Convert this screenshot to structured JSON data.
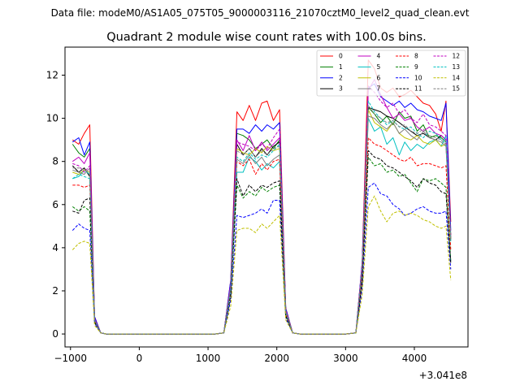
{
  "header": {
    "datafile": "Data file: modeM0/AS1A05_075T05_9000003116_21070cztM0_level2_quad_clean.evt"
  },
  "chart_data": {
    "type": "line",
    "title": "Quadrant 2 module wise count rates with 100.0s bins.",
    "xlabel": "",
    "ylabel": "",
    "offset_text": "+3.041e8",
    "x_ticks": [
      -1000,
      0,
      1000,
      2000,
      3000,
      4000
    ],
    "x_tick_labels": [
      "−1000",
      "0",
      "1000",
      "2000",
      "3000",
      "4000"
    ],
    "y_ticks": [
      0,
      2,
      4,
      6,
      8,
      10,
      12
    ],
    "y_tick_labels": [
      "0",
      "2",
      "4",
      "6",
      "8",
      "10",
      "12"
    ],
    "xlim": [
      -1080,
      4780
    ],
    "ylim": [
      -0.6,
      13.3
    ],
    "grid": false,
    "legend_position": "top-right",
    "x": [
      -970,
      -880,
      -800,
      -720,
      -650,
      -560,
      -480,
      -400,
      -300,
      -200,
      -100,
      0,
      100,
      200,
      300,
      400,
      500,
      600,
      700,
      800,
      900,
      1000,
      1100,
      1230,
      1330,
      1420,
      1510,
      1600,
      1690,
      1780,
      1860,
      1950,
      2040,
      2130,
      2230,
      2340,
      2450,
      2600,
      2800,
      3000,
      3150,
      3240,
      3330,
      3420,
      3510,
      3600,
      3690,
      3780,
      3860,
      3950,
      4040,
      4130,
      4220,
      4310,
      4390,
      4460,
      4530
    ],
    "series": [
      {
        "name": "0",
        "color": "#ff0000",
        "dashed": false,
        "values": [
          9.0,
          8.8,
          9.3,
          9.7,
          0.8,
          0.05,
          0,
          0,
          0,
          0,
          0,
          0,
          0,
          0,
          0,
          0,
          0,
          0,
          0,
          0,
          0,
          0,
          0,
          0.05,
          2.5,
          10.3,
          9.9,
          10.6,
          9.9,
          10.7,
          10.8,
          9.9,
          10.4,
          1.2,
          0.05,
          0,
          0,
          0,
          0,
          0,
          0.05,
          3.3,
          12.7,
          12.3,
          11.4,
          11.2,
          11.4,
          11.0,
          11.1,
          11.3,
          11.0,
          10.7,
          10.6,
          10.2,
          9.4,
          10.8,
          5.2
        ]
      },
      {
        "name": "1",
        "color": "#008000",
        "dashed": false,
        "values": [
          8.8,
          8.4,
          8.2,
          8.6,
          0.75,
          0.05,
          0,
          0,
          0,
          0,
          0,
          0,
          0,
          0,
          0,
          0,
          0,
          0,
          0,
          0,
          0,
          0,
          0,
          0.05,
          2.4,
          9.3,
          9.2,
          9.0,
          8.6,
          8.8,
          9.0,
          8.6,
          9.0,
          1.1,
          0.05,
          0,
          0,
          0,
          0,
          0,
          0.05,
          3.2,
          10.5,
          10.2,
          9.8,
          10.1,
          9.7,
          10.3,
          10.0,
          10.1,
          9.4,
          9.7,
          9.1,
          9.2,
          9.1,
          8.9,
          4.6
        ]
      },
      {
        "name": "2",
        "color": "#0000ff",
        "dashed": false,
        "values": [
          8.9,
          9.1,
          8.3,
          8.9,
          0.8,
          0.05,
          0,
          0,
          0,
          0,
          0,
          0,
          0,
          0,
          0,
          0,
          0,
          0,
          0,
          0,
          0,
          0,
          0,
          0.05,
          2.5,
          9.5,
          9.5,
          9.3,
          9.7,
          9.4,
          9.7,
          9.5,
          9.8,
          1.2,
          0.05,
          0,
          0,
          0,
          0,
          0,
          0.05,
          3.3,
          11.4,
          11.6,
          11.0,
          10.8,
          10.6,
          10.8,
          10.5,
          10.7,
          10.4,
          10.3,
          10.1,
          10.0,
          9.9,
          10.7,
          4.8
        ]
      },
      {
        "name": "3",
        "color": "#000000",
        "dashed": false,
        "values": [
          7.8,
          7.5,
          7.7,
          7.3,
          0.7,
          0.05,
          0,
          0,
          0,
          0,
          0,
          0,
          0,
          0,
          0,
          0,
          0,
          0,
          0,
          0,
          0,
          0,
          0,
          0.05,
          2.2,
          8.8,
          8.3,
          8.6,
          8.2,
          8.6,
          8.3,
          8.7,
          8.9,
          1.1,
          0.05,
          0,
          0,
          0,
          0,
          0,
          0.05,
          3.0,
          10.5,
          10.4,
          10.3,
          10.1,
          10.0,
          9.8,
          9.6,
          9.4,
          9.2,
          9.3,
          9.1,
          9.0,
          9.2,
          9.0,
          4.4
        ]
      },
      {
        "name": "4",
        "color": "#c000c0",
        "dashed": false,
        "values": [
          8.0,
          8.2,
          7.9,
          8.4,
          0.7,
          0.05,
          0,
          0,
          0,
          0,
          0,
          0,
          0,
          0,
          0,
          0,
          0,
          0,
          0,
          0,
          0,
          0,
          0,
          0.05,
          2.3,
          9.0,
          8.5,
          9.2,
          8.5,
          8.9,
          8.5,
          8.8,
          9.1,
          1.1,
          0.05,
          0,
          0,
          0,
          0,
          0,
          0.05,
          3.1,
          11.3,
          11.8,
          11.1,
          10.5,
          10.0,
          10.2,
          9.9,
          10.0,
          9.6,
          9.4,
          9.6,
          9.3,
          9.2,
          9.0,
          4.5
        ]
      },
      {
        "name": "5",
        "color": "#00c0c0",
        "dashed": false,
        "values": [
          7.2,
          7.3,
          7.6,
          7.4,
          0.65,
          0.05,
          0,
          0,
          0,
          0,
          0,
          0,
          0,
          0,
          0,
          0,
          0,
          0,
          0,
          0,
          0,
          0,
          0,
          0.05,
          2.1,
          7.5,
          7.5,
          8.2,
          8.0,
          7.6,
          7.9,
          7.7,
          8.0,
          1.0,
          0.05,
          0,
          0,
          0,
          0,
          0,
          0.05,
          2.9,
          10.0,
          9.4,
          9.6,
          8.8,
          9.1,
          8.3,
          8.9,
          8.5,
          8.8,
          8.6,
          8.9,
          9.0,
          8.7,
          9.2,
          4.3
        ]
      },
      {
        "name": "6",
        "color": "#c0c000",
        "dashed": false,
        "values": [
          7.5,
          7.4,
          7.6,
          7.5,
          0.65,
          0.05,
          0,
          0,
          0,
          0,
          0,
          0,
          0,
          0,
          0,
          0,
          0,
          0,
          0,
          0,
          0,
          0,
          0,
          0.05,
          2.2,
          8.6,
          8.4,
          8.3,
          8.6,
          8.4,
          8.7,
          8.5,
          8.6,
          1.05,
          0.05,
          0,
          0,
          0,
          0,
          0,
          0.05,
          3.0,
          10.4,
          9.8,
          9.6,
          9.4,
          9.8,
          9.3,
          9.1,
          9.0,
          9.2,
          8.9,
          8.8,
          9.0,
          8.7,
          8.8,
          4.4
        ]
      },
      {
        "name": "7",
        "color": "#808080",
        "dashed": false,
        "values": [
          7.6,
          7.5,
          7.4,
          7.7,
          0.65,
          0.05,
          0,
          0,
          0,
          0,
          0,
          0,
          0,
          0,
          0,
          0,
          0,
          0,
          0,
          0,
          0,
          0,
          0,
          0.05,
          2.2,
          8.1,
          7.9,
          8.3,
          7.9,
          8.2,
          7.8,
          8.1,
          8.3,
          1.0,
          0.05,
          0,
          0,
          0,
          0,
          0,
          0.05,
          2.9,
          10.1,
          10.0,
          9.7,
          9.5,
          9.8,
          9.3,
          9.5,
          9.2,
          9.0,
          9.4,
          9.1,
          9.0,
          8.9,
          8.7,
          4.4
        ]
      },
      {
        "name": "8",
        "color": "#ff0000",
        "dashed": true,
        "values": [
          6.9,
          6.9,
          6.8,
          6.9,
          0.6,
          0.05,
          0,
          0,
          0,
          0,
          0,
          0,
          0,
          0,
          0,
          0,
          0,
          0,
          0,
          0,
          0,
          0,
          0,
          0.05,
          2.0,
          8.0,
          7.8,
          8.1,
          7.4,
          7.9,
          7.6,
          8.0,
          8.1,
          0.95,
          0.05,
          0,
          0,
          0,
          0,
          0,
          0.05,
          2.6,
          9.1,
          8.8,
          8.7,
          8.5,
          8.3,
          8.1,
          8.0,
          8.2,
          7.8,
          7.9,
          7.9,
          7.8,
          7.7,
          7.8,
          3.9
        ]
      },
      {
        "name": "9",
        "color": "#008000",
        "dashed": true,
        "values": [
          5.9,
          5.7,
          5.9,
          5.7,
          0.55,
          0.05,
          0,
          0,
          0,
          0,
          0,
          0,
          0,
          0,
          0,
          0,
          0,
          0,
          0,
          0,
          0,
          0,
          0,
          0.05,
          1.8,
          6.9,
          6.3,
          6.6,
          6.4,
          6.8,
          6.6,
          6.8,
          6.9,
          0.85,
          0.05,
          0,
          0,
          0,
          0,
          0,
          0.05,
          2.4,
          8.2,
          7.8,
          7.9,
          7.5,
          7.6,
          7.3,
          7.4,
          7.0,
          6.6,
          7.2,
          7.1,
          7.2,
          7.0,
          6.8,
          3.4
        ]
      },
      {
        "name": "10",
        "color": "#0000ff",
        "dashed": true,
        "values": [
          4.8,
          5.1,
          4.9,
          4.8,
          0.5,
          0.05,
          0,
          0,
          0,
          0,
          0,
          0,
          0,
          0,
          0,
          0,
          0,
          0,
          0,
          0,
          0,
          0,
          0,
          0.05,
          1.6,
          5.5,
          5.4,
          5.5,
          5.6,
          5.8,
          5.6,
          6.2,
          6.2,
          0.75,
          0.05,
          0,
          0,
          0,
          0,
          0,
          0.05,
          2.1,
          6.8,
          7.0,
          6.5,
          6.4,
          6.0,
          5.8,
          5.5,
          5.6,
          5.8,
          5.9,
          5.7,
          5.6,
          5.6,
          5.7,
          3.0
        ]
      },
      {
        "name": "11",
        "color": "#000000",
        "dashed": true,
        "values": [
          5.7,
          5.6,
          6.2,
          6.3,
          0.55,
          0.05,
          0,
          0,
          0,
          0,
          0,
          0,
          0,
          0,
          0,
          0,
          0,
          0,
          0,
          0,
          0,
          0,
          0,
          0.05,
          1.8,
          7.2,
          6.4,
          6.9,
          6.6,
          6.9,
          6.8,
          7.0,
          7.1,
          0.85,
          0.05,
          0,
          0,
          0,
          0,
          0,
          0.05,
          2.5,
          8.5,
          8.2,
          8.1,
          7.8,
          7.7,
          7.5,
          7.3,
          7.1,
          6.8,
          7.2,
          7.0,
          6.9,
          6.6,
          6.5,
          3.3
        ]
      },
      {
        "name": "12",
        "color": "#c000c0",
        "dashed": true,
        "values": [
          7.9,
          7.8,
          7.5,
          7.8,
          0.7,
          0.05,
          0,
          0,
          0,
          0,
          0,
          0,
          0,
          0,
          0,
          0,
          0,
          0,
          0,
          0,
          0,
          0,
          0,
          0.05,
          2.3,
          8.9,
          8.8,
          8.7,
          8.5,
          8.8,
          8.6,
          9.1,
          9.5,
          1.1,
          0.05,
          0,
          0,
          0,
          0,
          0,
          0.05,
          3.2,
          11.5,
          11.2,
          10.8,
          10.5,
          10.7,
          10.2,
          10.4,
          10.0,
          9.8,
          10.2,
          9.7,
          9.6,
          9.4,
          9.2,
          4.6
        ]
      },
      {
        "name": "13",
        "color": "#00c0c0",
        "dashed": true,
        "values": [
          7.2,
          7.4,
          7.3,
          7.2,
          0.65,
          0.05,
          0,
          0,
          0,
          0,
          0,
          0,
          0,
          0,
          0,
          0,
          0,
          0,
          0,
          0,
          0,
          0,
          0,
          0.05,
          2.1,
          8.2,
          8.0,
          8.4,
          8.1,
          8.3,
          8.2,
          8.5,
          8.8,
          1.0,
          0.05,
          0,
          0,
          0,
          0,
          0,
          0.05,
          3.0,
          10.8,
          10.3,
          10.0,
          9.7,
          9.9,
          9.6,
          9.5,
          9.6,
          9.3,
          9.1,
          9.4,
          9.3,
          9.0,
          8.8,
          4.3
        ]
      },
      {
        "name": "14",
        "color": "#c0c000",
        "dashed": true,
        "values": [
          3.9,
          4.2,
          4.3,
          4.2,
          0.4,
          0.05,
          0,
          0,
          0,
          0,
          0,
          0,
          0,
          0,
          0,
          0,
          0,
          0,
          0,
          0,
          0,
          0,
          0,
          0.05,
          1.3,
          4.8,
          4.9,
          4.9,
          4.7,
          5.1,
          4.9,
          5.2,
          5.5,
          0.65,
          0.05,
          0,
          0,
          0,
          0,
          0,
          0.05,
          1.8,
          5.9,
          6.4,
          5.7,
          5.2,
          5.6,
          5.7,
          5.5,
          5.6,
          5.5,
          5.3,
          5.2,
          5.0,
          4.9,
          5.0,
          2.5
        ]
      },
      {
        "name": "15",
        "color": "#808080",
        "dashed": true,
        "values": [
          7.7,
          7.7,
          7.6,
          7.5,
          0.65,
          0.05,
          0,
          0,
          0,
          0,
          0,
          0,
          0,
          0,
          0,
          0,
          0,
          0,
          0,
          0,
          0,
          0,
          0,
          0.05,
          2.2,
          8.5,
          8.3,
          8.6,
          8.2,
          8.5,
          8.3,
          8.6,
          8.7,
          1.05,
          0.05,
          0,
          0,
          0,
          0,
          0,
          0.05,
          3.0,
          10.6,
          10.2,
          10.0,
          9.8,
          9.9,
          9.6,
          9.7,
          9.4,
          9.3,
          9.5,
          9.2,
          9.1,
          9.0,
          8.8,
          4.4
        ]
      }
    ]
  }
}
